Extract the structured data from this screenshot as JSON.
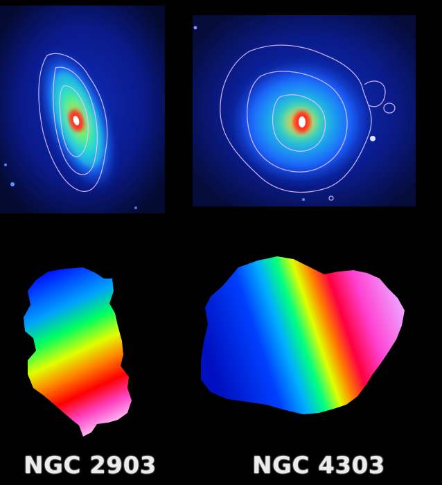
{
  "captions": {
    "left": "NGC 2903",
    "right": "NGC 4303"
  },
  "palette": {
    "background": "#000000",
    "panel_blue": "#0a1a8a",
    "contour": "#e8c8ff"
  }
}
